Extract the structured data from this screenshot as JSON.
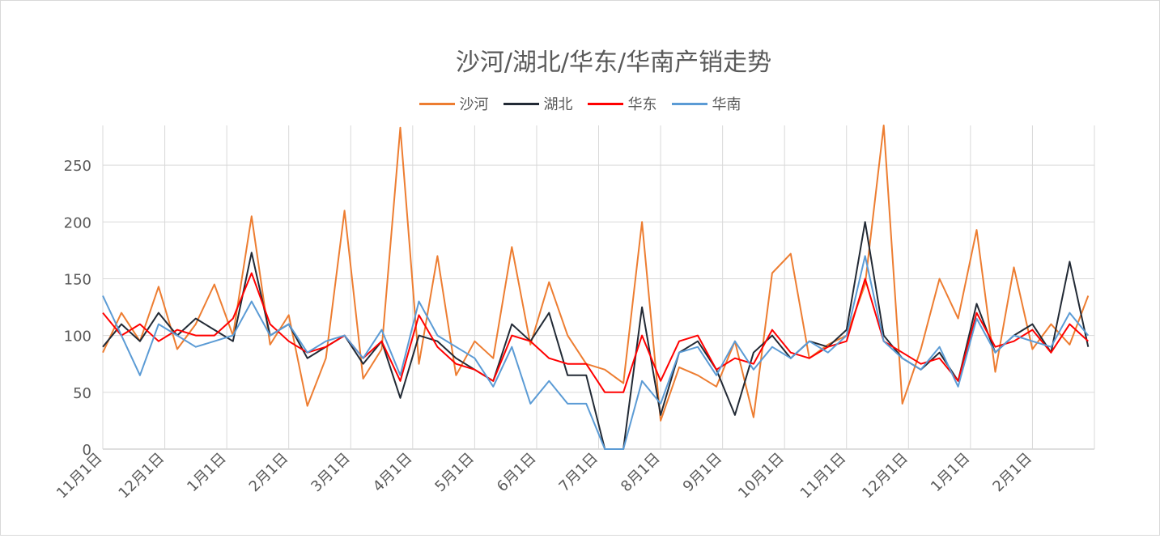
{
  "chart_data": {
    "type": "line",
    "title": "沙河/湖北/华东/华南产销走势",
    "xlabel": "",
    "ylabel": "",
    "ylim": [
      0,
      285
    ],
    "yticks": [
      0,
      50,
      100,
      150,
      200,
      250
    ],
    "grid": true,
    "legend_position": "top",
    "x_ticks": [
      "11月1日",
      "12月1日",
      "1月1日",
      "2月1日",
      "3月1日",
      "4月1日",
      "5月1日",
      "6月1日",
      "7月1日",
      "8月1日",
      "9月1日",
      "10月1日",
      "11月1日",
      "12月1日",
      "1月1日",
      "2月1日"
    ],
    "series": [
      {
        "name": "沙河",
        "color": "#ED7D31",
        "x": [
          0,
          0.3,
          0.6,
          0.9,
          1.2,
          1.5,
          1.8,
          2.1,
          2.4,
          2.7,
          3.0,
          3.3,
          3.6,
          3.9,
          4.2,
          4.5,
          4.8,
          5.1,
          5.4,
          5.7,
          6.0,
          6.3,
          6.6,
          6.9,
          7.2,
          7.5,
          7.8,
          8.1,
          8.4,
          8.7,
          9.0,
          9.3,
          9.6,
          9.9,
          10.2,
          10.5,
          10.8,
          11.1,
          11.4,
          11.7,
          12.0,
          12.3,
          12.6,
          12.9,
          13.2,
          13.5,
          13.8,
          14.1,
          14.4,
          14.7,
          15.0,
          15.3,
          15.6,
          15.9
        ],
        "values": [
          85,
          120,
          95,
          143,
          88,
          110,
          145,
          100,
          205,
          92,
          118,
          38,
          80,
          210,
          62,
          88,
          283,
          75,
          170,
          65,
          95,
          80,
          178,
          92,
          147,
          100,
          75,
          70,
          58,
          200,
          25,
          72,
          65,
          55,
          95,
          28,
          155,
          172,
          80,
          92,
          100,
          145,
          285,
          40,
          88,
          150,
          115,
          193,
          68,
          160,
          88,
          110,
          92,
          135
        ]
      },
      {
        "name": "湖北",
        "color": "#222A35",
        "x": [
          0,
          0.3,
          0.6,
          0.9,
          1.2,
          1.5,
          1.8,
          2.1,
          2.4,
          2.7,
          3.0,
          3.3,
          3.6,
          3.9,
          4.2,
          4.5,
          4.8,
          5.1,
          5.4,
          5.7,
          6.0,
          6.3,
          6.6,
          6.9,
          7.2,
          7.5,
          7.8,
          8.1,
          8.4,
          8.7,
          9.0,
          9.3,
          9.6,
          9.9,
          10.2,
          10.5,
          10.8,
          11.1,
          11.4,
          11.7,
          12.0,
          12.3,
          12.6,
          12.9,
          13.2,
          13.5,
          13.8,
          14.1,
          14.4,
          14.7,
          15.0,
          15.3,
          15.6,
          15.9
        ],
        "values": [
          90,
          110,
          95,
          120,
          100,
          115,
          105,
          95,
          173,
          100,
          110,
          80,
          90,
          100,
          75,
          95,
          45,
          100,
          95,
          80,
          70,
          60,
          110,
          95,
          120,
          65,
          65,
          0,
          0,
          125,
          30,
          85,
          95,
          70,
          30,
          85,
          100,
          80,
          95,
          90,
          105,
          200,
          100,
          80,
          70,
          85,
          60,
          128,
          85,
          100,
          110,
          85,
          165,
          90
        ]
      },
      {
        "name": "华东",
        "color": "#FF0000",
        "x": [
          0,
          0.3,
          0.6,
          0.9,
          1.2,
          1.5,
          1.8,
          2.1,
          2.4,
          2.7,
          3.0,
          3.3,
          3.6,
          3.9,
          4.2,
          4.5,
          4.8,
          5.1,
          5.4,
          5.7,
          6.0,
          6.3,
          6.6,
          6.9,
          7.2,
          7.5,
          7.8,
          8.1,
          8.4,
          8.7,
          9.0,
          9.3,
          9.6,
          9.9,
          10.2,
          10.5,
          10.8,
          11.1,
          11.4,
          11.7,
          12.0,
          12.3,
          12.6,
          12.9,
          13.2,
          13.5,
          13.8,
          14.1,
          14.4,
          14.7,
          15.0,
          15.3,
          15.6,
          15.9
        ],
        "values": [
          120,
          100,
          110,
          95,
          105,
          100,
          100,
          115,
          155,
          110,
          95,
          85,
          90,
          100,
          80,
          95,
          60,
          118,
          90,
          75,
          70,
          60,
          100,
          95,
          80,
          75,
          75,
          50,
          50,
          100,
          60,
          95,
          100,
          70,
          80,
          75,
          105,
          85,
          80,
          90,
          95,
          150,
          95,
          85,
          75,
          80,
          60,
          120,
          90,
          95,
          105,
          85,
          110,
          95
        ]
      },
      {
        "name": "华南",
        "color": "#5B9BD5",
        "x": [
          0,
          0.3,
          0.6,
          0.9,
          1.2,
          1.5,
          1.8,
          2.1,
          2.4,
          2.7,
          3.0,
          3.3,
          3.6,
          3.9,
          4.2,
          4.5,
          4.8,
          5.1,
          5.4,
          5.7,
          6.0,
          6.3,
          6.6,
          6.9,
          7.2,
          7.5,
          7.8,
          8.1,
          8.4,
          8.7,
          9.0,
          9.3,
          9.6,
          9.9,
          10.2,
          10.5,
          10.8,
          11.1,
          11.4,
          11.7,
          12.0,
          12.3,
          12.6,
          12.9,
          13.2,
          13.5,
          13.8,
          14.1,
          14.4,
          14.7,
          15.0,
          15.3,
          15.6,
          15.9
        ],
        "values": [
          135,
          100,
          65,
          110,
          100,
          90,
          95,
          100,
          130,
          100,
          110,
          85,
          95,
          100,
          80,
          105,
          65,
          130,
          100,
          90,
          80,
          55,
          90,
          40,
          60,
          40,
          40,
          0,
          0,
          60,
          40,
          85,
          90,
          65,
          95,
          70,
          90,
          80,
          95,
          85,
          100,
          170,
          95,
          80,
          70,
          90,
          55,
          115,
          85,
          100,
          95,
          90,
          120,
          100
        ]
      }
    ]
  }
}
